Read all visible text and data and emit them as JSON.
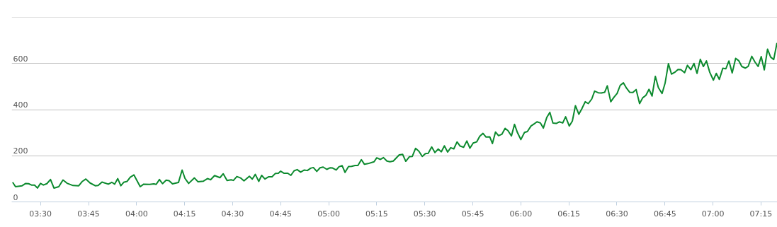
{
  "chart_data": {
    "type": "line",
    "x": [
      3.355,
      3.37,
      3.404,
      3.423,
      3.438,
      3.453,
      3.469,
      3.484,
      3.5,
      3.515,
      3.533,
      3.552,
      3.57,
      3.595,
      3.617,
      3.638,
      3.669,
      3.699,
      3.718,
      3.736,
      3.758,
      3.785,
      3.8,
      3.82,
      3.853,
      3.871,
      3.886,
      3.902,
      3.918,
      3.933,
      3.951,
      3.967,
      3.986,
      4.019,
      4.037,
      4.068,
      4.09,
      4.102,
      4.119,
      4.135,
      4.154,
      4.169,
      4.187,
      4.218,
      4.237,
      4.252,
      4.271,
      4.301,
      4.32,
      4.348,
      4.369,
      4.385,
      4.406,
      4.434,
      4.451,
      4.471,
      4.492,
      4.504,
      4.522,
      4.541,
      4.559,
      4.587,
      4.602,
      4.618,
      4.636,
      4.651,
      4.668,
      4.688,
      4.705,
      4.722,
      4.738,
      4.75,
      4.768,
      4.787,
      4.803,
      4.82,
      4.836,
      4.854,
      4.873,
      4.889,
      4.906,
      4.92,
      4.938,
      4.955,
      4.971,
      4.99,
      5.008,
      5.02,
      5.039,
      5.053,
      5.07,
      5.085,
      5.103,
      5.119,
      5.137,
      5.152,
      5.17,
      5.186,
      5.205,
      5.236,
      5.25,
      5.269,
      5.285,
      5.303,
      5.319,
      5.336,
      5.352,
      5.367,
      5.385,
      5.401,
      5.42,
      5.435,
      5.452,
      5.469,
      5.487,
      5.503,
      5.518,
      5.536,
      5.553,
      5.57,
      5.586,
      5.602,
      5.619,
      5.635,
      5.651,
      5.668,
      5.684,
      5.702,
      5.719,
      5.735,
      5.752,
      5.77,
      5.786,
      5.803,
      5.819,
      5.838,
      5.852,
      5.868,
      5.884,
      5.901,
      5.918,
      5.933,
      5.951,
      5.967,
      5.982,
      6.0,
      6.019,
      6.034,
      6.053,
      6.067,
      6.084,
      6.102,
      6.117,
      6.135,
      6.151,
      6.167,
      6.184,
      6.2,
      6.218,
      6.233,
      6.252,
      6.268,
      6.284,
      6.302,
      6.317,
      6.335,
      6.351,
      6.369,
      6.384,
      6.403,
      6.419,
      6.436,
      6.45,
      6.468,
      6.485,
      6.501,
      6.517,
      6.534,
      6.55,
      6.567,
      6.583,
      6.6,
      6.618,
      6.634,
      6.651,
      6.667,
      6.683,
      6.7,
      6.716,
      6.735,
      6.751,
      6.768,
      6.784,
      6.8,
      6.818,
      6.833,
      6.852,
      6.867,
      6.885,
      6.901,
      6.917,
      6.934,
      6.95,
      6.966,
      6.983,
      7.002,
      7.017,
      7.033,
      7.051,
      7.067,
      7.083,
      7.1,
      7.118,
      7.134,
      7.15,
      7.168,
      7.183,
      7.202,
      7.218,
      7.235,
      7.251,
      7.267,
      7.284,
      7.3,
      7.316,
      7.333
    ],
    "series": [
      {
        "color": "#0c8a2e",
        "values": [
          85,
          66,
          70,
          80,
          79,
          73,
          73,
          60,
          80,
          73,
          79,
          97,
          60,
          66,
          95,
          81,
          71,
          70,
          89,
          99,
          82,
          70,
          71,
          86,
          77,
          85,
          77,
          101,
          70,
          85,
          89,
          107,
          117,
          66,
          77,
          76,
          78,
          76,
          97,
          79,
          94,
          92,
          78,
          84,
          138,
          102,
          80,
          104,
          87,
          90,
          101,
          96,
          114,
          105,
          122,
          93,
          96,
          93,
          110,
          104,
          91,
          111,
          99,
          119,
          89,
          115,
          99,
          109,
          109,
          123,
          124,
          133,
          124,
          124,
          115,
          135,
          140,
          129,
          138,
          136,
          146,
          149,
          132,
          148,
          151,
          141,
          148,
          147,
          138,
          152,
          157,
          128,
          153,
          154,
          158,
          158,
          183,
          163,
          166,
          174,
          191,
          184,
          192,
          177,
          174,
          177,
          191,
          204,
          206,
          176,
          196,
          197,
          232,
          220,
          197,
          209,
          211,
          238,
          214,
          229,
          217,
          243,
          216,
          235,
          230,
          260,
          242,
          237,
          264,
          233,
          255,
          260,
          284,
          297,
          281,
          282,
          253,
          303,
          287,
          293,
          319,
          309,
          286,
          336,
          301,
          270,
          301,
          305,
          329,
          337,
          347,
          342,
          320,
          366,
          388,
          342,
          340,
          347,
          342,
          369,
          329,
          350,
          417,
          380,
          403,
          434,
          426,
          446,
          480,
          473,
          472,
          475,
          503,
          434,
          454,
          470,
          505,
          516,
          493,
          475,
          474,
          487,
          426,
          451,
          462,
          488,
          459,
          544,
          495,
          470,
          516,
          599,
          554,
          561,
          574,
          573,
          560,
          592,
          573,
          600,
          557,
          618,
          587,
          611,
          562,
          528,
          557,
          531,
          579,
          577,
          611,
          559,
          622,
          612,
          587,
          580,
          587,
          631,
          607,
          587,
          630,
          572,
          662,
          628,
          617,
          689
        ]
      }
    ],
    "xlim": [
      3.35,
      7.335
    ],
    "ylim": [
      0,
      800
    ],
    "xticks": [
      {
        "value": 3.5,
        "label": "03:30"
      },
      {
        "value": 3.75,
        "label": "03:45"
      },
      {
        "value": 4.0,
        "label": "04:00"
      },
      {
        "value": 4.25,
        "label": "04:15"
      },
      {
        "value": 4.5,
        "label": "04:30"
      },
      {
        "value": 4.75,
        "label": "04:45"
      },
      {
        "value": 5.0,
        "label": "05:00"
      },
      {
        "value": 5.25,
        "label": "05:15"
      },
      {
        "value": 5.5,
        "label": "05:30"
      },
      {
        "value": 5.75,
        "label": "05:45"
      },
      {
        "value": 6.0,
        "label": "06:00"
      },
      {
        "value": 6.25,
        "label": "06:15"
      },
      {
        "value": 6.5,
        "label": "06:30"
      },
      {
        "value": 6.75,
        "label": "06:45"
      },
      {
        "value": 7.0,
        "label": "07:00"
      },
      {
        "value": 7.25,
        "label": "07:15"
      }
    ],
    "yticks": [
      0,
      200,
      400,
      600,
      {
        "value": 800,
        "label": null
      }
    ],
    "grid": "y"
  }
}
